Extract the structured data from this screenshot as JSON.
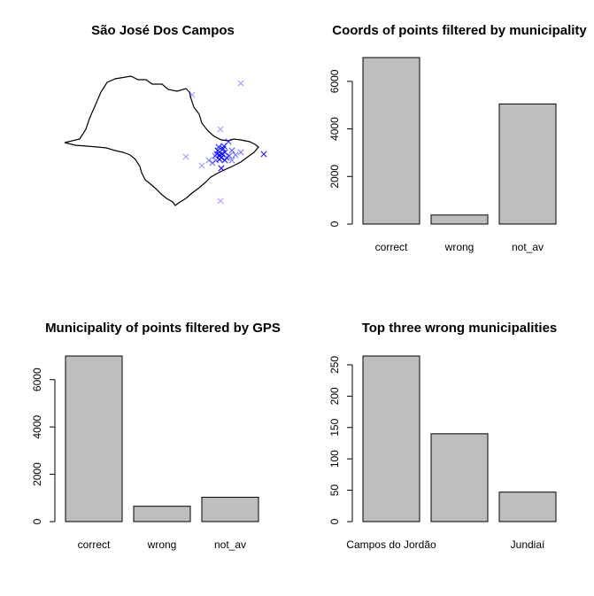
{
  "chart_data": [
    {
      "type": "scatter",
      "title": "São José Dos Campos",
      "point_color": "#0000ff",
      "marker": "x",
      "basemap": "state outline"
    },
    {
      "type": "bar",
      "title": "Coords of points filtered by municipality",
      "categories": [
        "correct",
        "wrong",
        "not_av"
      ],
      "values": [
        7000,
        380,
        5050
      ],
      "ylim": [
        0,
        7000
      ],
      "yticks": [
        0,
        2000,
        4000,
        6000
      ],
      "bar_color": "#bebebe"
    },
    {
      "type": "bar",
      "title": "Municipality of points filtered by GPS",
      "categories": [
        "correct",
        "wrong",
        "not_av"
      ],
      "values": [
        7000,
        650,
        1030
      ],
      "ylim": [
        0,
        7000
      ],
      "yticks": [
        0,
        2000,
        4000,
        6000
      ],
      "bar_color": "#bebebe"
    },
    {
      "type": "bar",
      "title": "Top three wrong municipalities",
      "categories": [
        "Campos do Jordão",
        "",
        "Jundiaí"
      ],
      "values": [
        264,
        140,
        47
      ],
      "ylim": [
        0,
        264
      ],
      "yticks": [
        0,
        50,
        100,
        150,
        200,
        250
      ],
      "bar_color": "#bebebe"
    }
  ]
}
